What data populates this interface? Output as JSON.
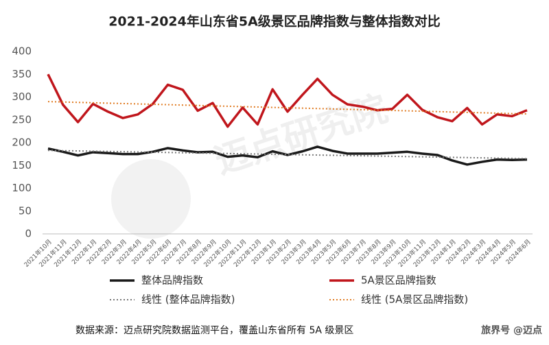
{
  "chart_data": {
    "type": "line",
    "title": "2021-2024年山东省5A级景区品牌指数与整体指数对比",
    "source": "数据来源：迈点研究院数据监测平台，覆盖山东省所有 5A 级景区",
    "watermark": "迈点研究院",
    "brand": "旅界号 @迈点",
    "categories": [
      "2021年10月",
      "2021年11月",
      "2021年12月",
      "2022年1月",
      "2022年2月",
      "2022年3月",
      "2022年4月",
      "2022年5月",
      "2022年6月",
      "2022年7月",
      "2022年8月",
      "2022年9月",
      "2022年10月",
      "2022年11月",
      "2022年12月",
      "2023年1月",
      "2023年2月",
      "2023年3月",
      "2023年4月",
      "2023年5月",
      "2023年6月",
      "2023年7月",
      "2023年8月",
      "2023年9月",
      "2023年10月",
      "2023年11月",
      "2023年12月",
      "2024年1月",
      "2024年2月",
      "2024年3月",
      "2024年4月",
      "2024年5月",
      "2024年6月"
    ],
    "series": [
      {
        "name": "整体品牌指数",
        "color": "#1a1a1a",
        "style": "solid",
        "values": [
          187,
          180,
          172,
          179,
          177,
          175,
          175,
          180,
          188,
          183,
          179,
          180,
          169,
          172,
          168,
          181,
          173,
          181,
          191,
          182,
          176,
          176,
          176,
          178,
          180,
          176,
          173,
          161,
          152,
          158,
          163,
          162,
          163
        ]
      },
      {
        "name": "5A景区品牌指数",
        "color": "#c0161c",
        "style": "solid",
        "values": [
          350,
          283,
          245,
          285,
          268,
          254,
          262,
          285,
          327,
          316,
          270,
          287,
          235,
          277,
          240,
          317,
          268,
          305,
          340,
          305,
          284,
          279,
          271,
          274,
          305,
          272,
          256,
          247,
          276,
          240,
          262,
          258,
          271
        ]
      },
      {
        "name": "线性 (整体品牌指数)",
        "color": "#777777",
        "style": "dotted",
        "values": [
          183,
          182.4,
          181.9,
          181.3,
          180.8,
          180.2,
          179.6,
          179.1,
          178.5,
          177.9,
          177.4,
          176.8,
          176.3,
          175.7,
          175.1,
          174.6,
          174.0,
          173.4,
          172.9,
          172.3,
          171.8,
          171.2,
          170.6,
          170.1,
          169.5,
          168.9,
          168.4,
          167.8,
          167.3,
          166.7,
          166.1,
          165.6,
          165.0
        ]
      },
      {
        "name": "线性 (5A景区品牌指数)",
        "color": "#e07b22",
        "style": "dotted",
        "values": [
          290,
          289.2,
          288.3,
          287.5,
          286.6,
          285.8,
          284.9,
          284.1,
          283.3,
          282.4,
          281.6,
          280.7,
          279.9,
          279.0,
          278.2,
          277.3,
          276.5,
          275.7,
          274.8,
          274.0,
          273.1,
          272.3,
          271.4,
          270.6,
          269.8,
          268.9,
          268.1,
          267.2,
          266.4,
          265.5,
          264.7,
          263.8,
          263.0
        ]
      }
    ],
    "ylim": [
      0,
      400
    ],
    "yticks": [
      0,
      50,
      100,
      150,
      200,
      250,
      300,
      350,
      400
    ],
    "grid": false
  }
}
